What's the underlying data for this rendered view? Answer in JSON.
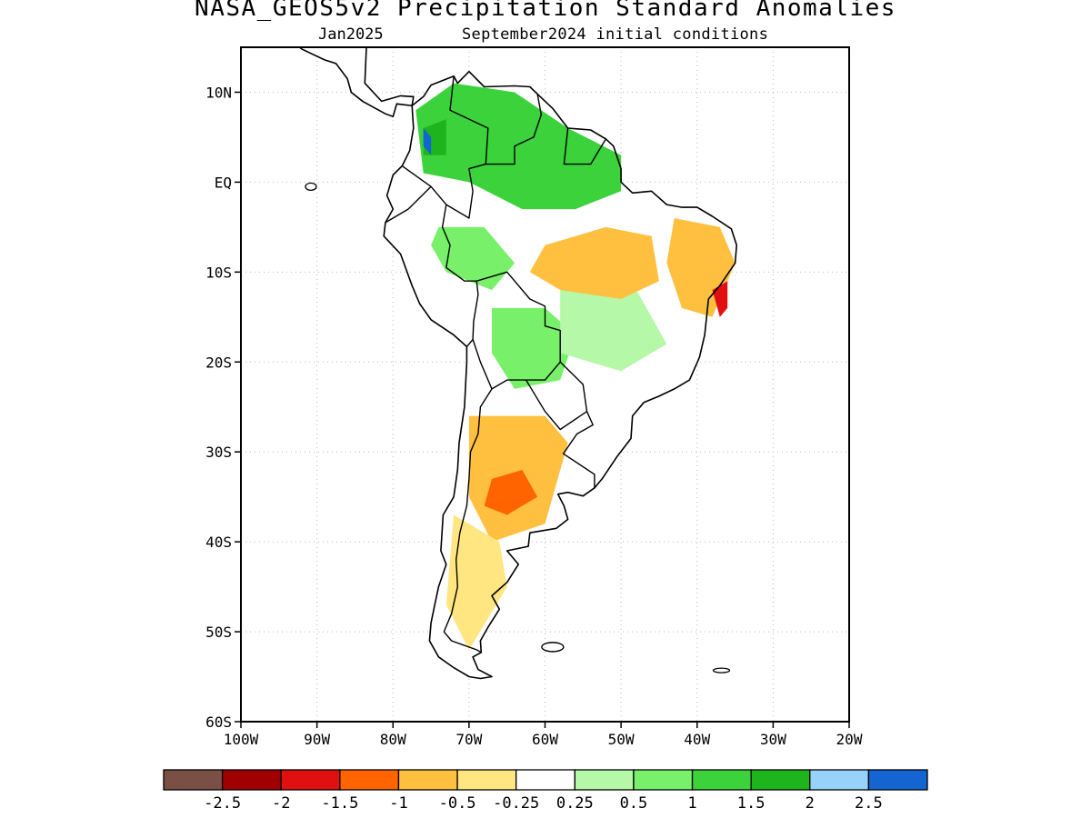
{
  "title": "NASA_GEOS5v2 Precipitation Standard Anomalies",
  "subtitle_left": "Jan2025",
  "subtitle_right": "September2024 initial conditions",
  "map": {
    "lon_range": [
      -100,
      -20
    ],
    "lat_range": [
      -60,
      15
    ],
    "lat_ticks": [
      {
        "value": 10,
        "label": "10N"
      },
      {
        "value": 0,
        "label": "EQ"
      },
      {
        "value": -10,
        "label": "10S"
      },
      {
        "value": -20,
        "label": "20S"
      },
      {
        "value": -30,
        "label": "30S"
      },
      {
        "value": -40,
        "label": "40S"
      },
      {
        "value": -50,
        "label": "50S"
      },
      {
        "value": -60,
        "label": "60S"
      }
    ],
    "lon_ticks": [
      {
        "value": -100,
        "label": "100W"
      },
      {
        "value": -90,
        "label": "90W"
      },
      {
        "value": -80,
        "label": "80W"
      },
      {
        "value": -70,
        "label": "70W"
      },
      {
        "value": -60,
        "label": "60W"
      },
      {
        "value": -50,
        "label": "50W"
      },
      {
        "value": -40,
        "label": "40W"
      },
      {
        "value": -30,
        "label": "30W"
      },
      {
        "value": -20,
        "label": "20W"
      }
    ],
    "grid": "dotted"
  },
  "colorbar": {
    "colors": [
      "#7a4f45",
      "#a00000",
      "#e01010",
      "#ff6400",
      "#ffc040",
      "#ffe680",
      "#ffffff",
      "#b4f8a8",
      "#78f06a",
      "#3cd23c",
      "#1eb41e",
      "#96d2fa",
      "#1464d2"
    ],
    "labels": [
      "-2.5",
      "-2",
      "-1.5",
      "-1",
      "-0.5",
      "-0.25",
      "0.25",
      "0.5",
      "1",
      "1.5",
      "2",
      "2.5"
    ]
  },
  "anomaly_regions": [
    {
      "category": "wet-1.5",
      "color": "#3cd23c",
      "points": [
        [
          -77,
          8
        ],
        [
          -72,
          11
        ],
        [
          -64,
          10
        ],
        [
          -57,
          6
        ],
        [
          -50,
          3
        ],
        [
          -50,
          -1
        ],
        [
          -56,
          -3
        ],
        [
          -63,
          -3
        ],
        [
          -70,
          0
        ],
        [
          -76,
          1
        ]
      ]
    },
    {
      "category": "wet-1",
      "color": "#78f06a",
      "points": [
        [
          -74,
          -5
        ],
        [
          -68,
          -5
        ],
        [
          -64,
          -9
        ],
        [
          -67,
          -12
        ],
        [
          -73,
          -10
        ],
        [
          -75,
          -7
        ]
      ]
    },
    {
      "category": "wet-1",
      "color": "#78f06a",
      "points": [
        [
          -67,
          -14
        ],
        [
          -60,
          -14
        ],
        [
          -56,
          -17
        ],
        [
          -58,
          -22
        ],
        [
          -64,
          -23
        ],
        [
          -67,
          -19
        ]
      ]
    },
    {
      "category": "wet-0.5",
      "color": "#b4f8a8",
      "points": [
        [
          -58,
          -12
        ],
        [
          -48,
          -12
        ],
        [
          -44,
          -18
        ],
        [
          -50,
          -21
        ],
        [
          -58,
          -19
        ]
      ]
    },
    {
      "category": "wet-2",
      "color": "#1eb41e",
      "points": [
        [
          -76,
          6
        ],
        [
          -73,
          7
        ],
        [
          -73,
          3
        ],
        [
          -76,
          3
        ]
      ]
    },
    {
      "category": "wet-2.5",
      "color": "#1464d2",
      "points": [
        [
          -76,
          6
        ],
        [
          -75,
          5
        ],
        [
          -75,
          3
        ],
        [
          -76,
          4
        ]
      ]
    },
    {
      "category": "dry-0.5",
      "color": "#ffc040",
      "points": [
        [
          -60,
          -7
        ],
        [
          -52,
          -5
        ],
        [
          -46,
          -6
        ],
        [
          -45,
          -11
        ],
        [
          -50,
          -13
        ],
        [
          -58,
          -12
        ],
        [
          -62,
          -10
        ]
      ]
    },
    {
      "category": "dry-0.5",
      "color": "#ffc040",
      "points": [
        [
          -43,
          -4
        ],
        [
          -37,
          -5
        ],
        [
          -35,
          -9
        ],
        [
          -38,
          -15
        ],
        [
          -42,
          -14
        ],
        [
          -44,
          -9
        ]
      ]
    },
    {
      "category": "dry-1.5",
      "color": "#e01010",
      "points": [
        [
          -38,
          -12
        ],
        [
          -36,
          -11
        ],
        [
          -36,
          -14
        ],
        [
          -37,
          -15
        ]
      ]
    },
    {
      "category": "dry-0.5",
      "color": "#ffc040",
      "points": [
        [
          -70,
          -26
        ],
        [
          -60,
          -26
        ],
        [
          -57,
          -29
        ],
        [
          -60,
          -38
        ],
        [
          -67,
          -40
        ],
        [
          -70,
          -35
        ]
      ]
    },
    {
      "category": "dry-1",
      "color": "#ff6400",
      "points": [
        [
          -67,
          -33
        ],
        [
          -63,
          -32
        ],
        [
          -61,
          -35
        ],
        [
          -65,
          -37
        ],
        [
          -68,
          -36
        ]
      ]
    },
    {
      "category": "dry-0.25",
      "color": "#ffe680",
      "points": [
        [
          -72,
          -37
        ],
        [
          -66,
          -40
        ],
        [
          -65,
          -45
        ],
        [
          -70,
          -52
        ],
        [
          -73,
          -47
        ]
      ]
    }
  ]
}
